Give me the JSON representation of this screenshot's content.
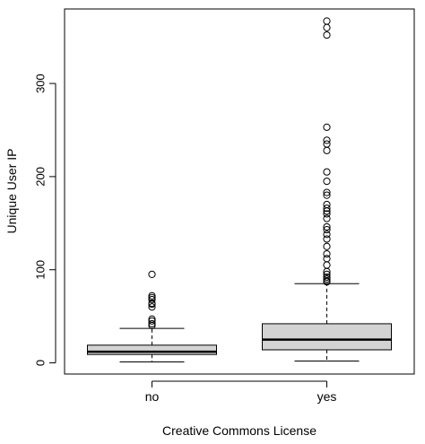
{
  "chart_data": {
    "type": "boxplot",
    "title": "",
    "xlabel": "Creative Commons License",
    "ylabel": "Unique User IP",
    "ylim": [
      -12,
      380
    ],
    "y_ticks": [
      0,
      100,
      200,
      300
    ],
    "grid": false,
    "box_fill": "#d3d3d3",
    "categories": [
      "no",
      "yes"
    ],
    "groups": [
      {
        "name": "no",
        "whisker_low": 1,
        "q1": 9,
        "median": 12,
        "q3": 19,
        "whisker_high": 37,
        "outliers": [
          40,
          42,
          45,
          47,
          60,
          63,
          64,
          68,
          70,
          72,
          95
        ]
      },
      {
        "name": "yes",
        "whisker_low": 2,
        "q1": 14,
        "median": 25,
        "q3": 42,
        "whisker_high": 85,
        "outliers": [
          87,
          88,
          90,
          92,
          95,
          98,
          105,
          112,
          117,
          125,
          133,
          138,
          143,
          146,
          155,
          160,
          163,
          166,
          170,
          180,
          183,
          195,
          205,
          228,
          235,
          239,
          253,
          352,
          360,
          367
        ]
      }
    ]
  }
}
